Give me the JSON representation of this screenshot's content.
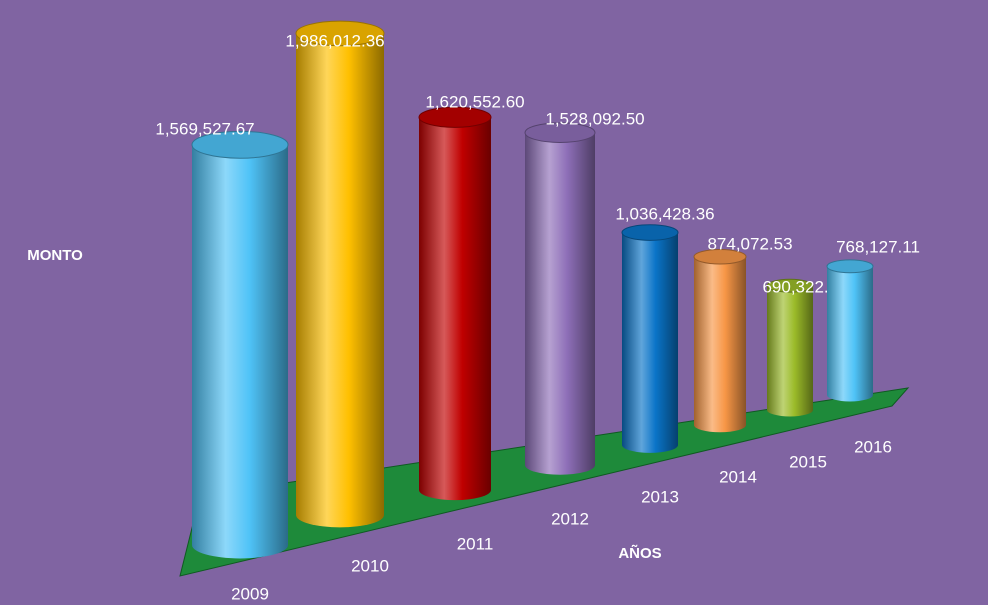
{
  "chart_data": {
    "type": "bar3d",
    "categories": [
      "2009",
      "2010",
      "2011",
      "2012",
      "2013",
      "2014",
      "2015",
      "2016"
    ],
    "values": [
      1569527.67,
      1986012.36,
      1620552.6,
      1528092.5,
      1036428.36,
      874072.53,
      690322.71,
      768127.11
    ],
    "value_labels": [
      "1,569,527.67",
      "1,986,012.36",
      "1,620,552.60",
      "1,528,092.50",
      "1,036,428.36",
      "874,072.53",
      "690,322.71",
      "768,127.11"
    ],
    "colors": [
      "#4fc3f7",
      "#ffc000",
      "#c00000",
      "#8e6fb8",
      "#0a74c8",
      "#f79646",
      "#9bbb29",
      "#4fc3f7"
    ],
    "ylabel": "MONTO",
    "xlabel": "AÑOS"
  }
}
